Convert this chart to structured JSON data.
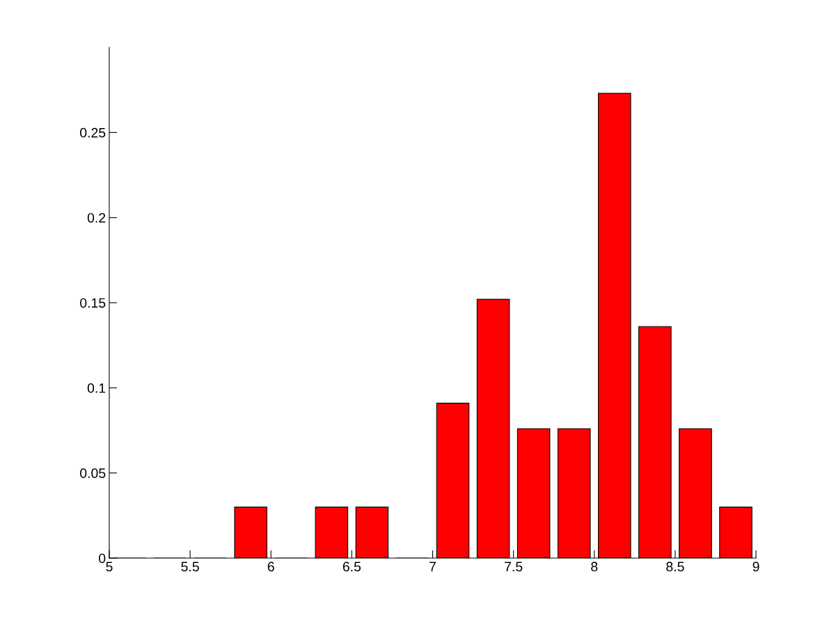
{
  "chart_data": {
    "type": "histogram",
    "bins": [
      5,
      5.25,
      5.5,
      5.75,
      6,
      6.25,
      6.5,
      6.75,
      7,
      7.25,
      7.5,
      7.75,
      8,
      8.25,
      8.5,
      8.75,
      9
    ],
    "values": [
      0,
      0,
      0,
      0.03,
      0,
      0.03,
      0.03,
      0,
      0.091,
      0.152,
      0.076,
      0.076,
      0.273,
      0.136,
      0.076,
      0.03
    ],
    "color": "#ff0000",
    "xlim": [
      5,
      9
    ],
    "xticks": [
      5,
      5.5,
      6,
      6.5,
      7,
      7.5,
      8,
      8.5,
      9
    ],
    "ylim": [
      0,
      0.3
    ],
    "yticks": [
      0,
      0.05,
      0.1,
      0.15,
      0.2,
      0.25
    ],
    "grid": false,
    "legend": false
  }
}
